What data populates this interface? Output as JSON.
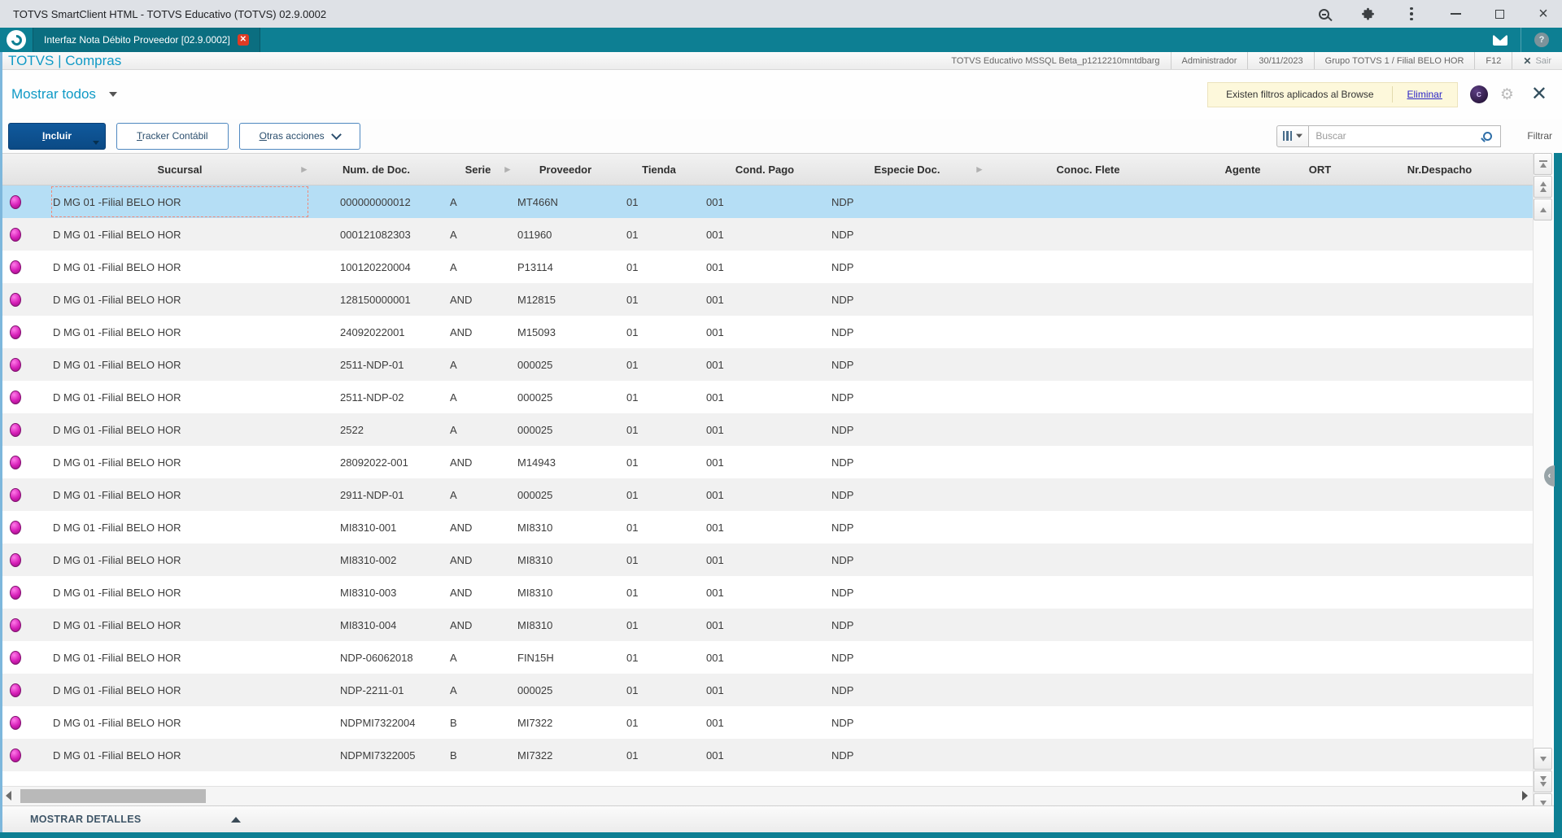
{
  "window": {
    "title": "TOTVS SmartClient HTML - TOTVS Educativo (TOTVS) 02.9.0002"
  },
  "tab_bar": {
    "tab_label": "Interfaz Nota Débito Proveedor [02.9.0002]"
  },
  "header": {
    "app_title": "TOTVS | Compras",
    "environment": "TOTVS Educativo MSSQL Beta_p1212210mntdbarg",
    "user": "Administrador",
    "date": "30/11/2023",
    "branch": "Grupo TOTVS 1 / Filial BELO HOR",
    "shortcut": "F12",
    "exit_x": "✕",
    "exit_label": "Sair"
  },
  "browse": {
    "view_selector": "Mostrar todos",
    "filter_notice": "Existen filtros aplicados al Browse",
    "filter_remove_label": "Eliminar",
    "search_placeholder": "Buscar",
    "filter_label": "Filtrar",
    "assistant_glyph": "c",
    "gear_glyph": "⚙",
    "close_glyph": "✕"
  },
  "toolbar": {
    "include_label": "Incluir",
    "include_underline": "I",
    "include_rest": "ncluir",
    "tracker_underline": "T",
    "tracker_rest": "racker Contábil",
    "more_underline": "O",
    "more_rest": "tras acciones"
  },
  "table": {
    "columns": [
      {
        "label": "Sucursal",
        "arrow": true
      },
      {
        "label": "Num. de Doc.",
        "arrow": false
      },
      {
        "label": "Serie",
        "arrow": true
      },
      {
        "label": "Proveedor",
        "arrow": false
      },
      {
        "label": "Tienda",
        "arrow": false
      },
      {
        "label": "Cond. Pago",
        "arrow": false
      },
      {
        "label": "Especie Doc.",
        "arrow": true
      },
      {
        "label": "Conoc. Flete",
        "arrow": false
      },
      {
        "label": "Agente",
        "arrow": false
      },
      {
        "label": "ORT",
        "arrow": false
      },
      {
        "label": "Nr.Despacho",
        "arrow": false
      }
    ],
    "selected_row_index": 0,
    "status_dot_color": "#d61fb8",
    "rows": [
      [
        "D MG 01 -Filial BELO HOR",
        "000000000012",
        "A",
        "MT466N",
        "01",
        "001",
        "NDP",
        "",
        "",
        "",
        ""
      ],
      [
        "D MG 01 -Filial BELO HOR",
        "000121082303",
        "A",
        "011960",
        "01",
        "001",
        "NDP",
        "",
        "",
        "",
        ""
      ],
      [
        "D MG 01 -Filial BELO HOR",
        "100120220004",
        "A",
        "P13114",
        "01",
        "001",
        "NDP",
        "",
        "",
        "",
        ""
      ],
      [
        "D MG 01 -Filial BELO HOR",
        "128150000001",
        "AND",
        "M12815",
        "01",
        "001",
        "NDP",
        "",
        "",
        "",
        ""
      ],
      [
        "D MG 01 -Filial BELO HOR",
        "24092022001",
        "AND",
        "M15093",
        "01",
        "001",
        "NDP",
        "",
        "",
        "",
        ""
      ],
      [
        "D MG 01 -Filial BELO HOR",
        "2511-NDP-01",
        "A",
        "000025",
        "01",
        "001",
        "NDP",
        "",
        "",
        "",
        ""
      ],
      [
        "D MG 01 -Filial BELO HOR",
        "2511-NDP-02",
        "A",
        "000025",
        "01",
        "001",
        "NDP",
        "",
        "",
        "",
        ""
      ],
      [
        "D MG 01 -Filial BELO HOR",
        "2522",
        "A",
        "000025",
        "01",
        "001",
        "NDP",
        "",
        "",
        "",
        ""
      ],
      [
        "D MG 01 -Filial BELO HOR",
        "28092022-001",
        "AND",
        "M14943",
        "01",
        "001",
        "NDP",
        "",
        "",
        "",
        ""
      ],
      [
        "D MG 01 -Filial BELO HOR",
        "2911-NDP-01",
        "A",
        "000025",
        "01",
        "001",
        "NDP",
        "",
        "",
        "",
        ""
      ],
      [
        "D MG 01 -Filial BELO HOR",
        "MI8310-001",
        "AND",
        "MI8310",
        "01",
        "001",
        "NDP",
        "",
        "",
        "",
        ""
      ],
      [
        "D MG 01 -Filial BELO HOR",
        "MI8310-002",
        "AND",
        "MI8310",
        "01",
        "001",
        "NDP",
        "",
        "",
        "",
        ""
      ],
      [
        "D MG 01 -Filial BELO HOR",
        "MI8310-003",
        "AND",
        "MI8310",
        "01",
        "001",
        "NDP",
        "",
        "",
        "",
        ""
      ],
      [
        "D MG 01 -Filial BELO HOR",
        "MI8310-004",
        "AND",
        "MI8310",
        "01",
        "001",
        "NDP",
        "",
        "",
        "",
        ""
      ],
      [
        "D MG 01 -Filial BELO HOR",
        "NDP-06062018",
        "A",
        "FIN15H",
        "01",
        "001",
        "NDP",
        "",
        "",
        "",
        ""
      ],
      [
        "D MG 01 -Filial BELO HOR",
        "NDP-2211-01",
        "A",
        "000025",
        "01",
        "001",
        "NDP",
        "",
        "",
        "",
        ""
      ],
      [
        "D MG 01 -Filial BELO HOR",
        "NDPMI7322004",
        "B",
        "MI7322",
        "01",
        "001",
        "NDP",
        "",
        "",
        "",
        ""
      ],
      [
        "D MG 01 -Filial BELO HOR",
        "NDPMI7322005",
        "B",
        "MI7322",
        "01",
        "001",
        "NDP",
        "",
        "",
        "",
        ""
      ]
    ]
  },
  "footer": {
    "details_label": "MOSTRAR DETALLES"
  },
  "colors": {
    "teal": "#0d7f93",
    "tab_teal": "#0b6e80",
    "title_blue": "#0f9ac6",
    "primary_button": "#0b4a85",
    "selected_row": "#b5def5",
    "alt_row": "#f1f1f1",
    "notice_bg": "#fdf8db",
    "link_blue": "#2a23c7",
    "status_dot": "#d61fb8"
  },
  "icons": {
    "zoom-icon": "magnifier-minus",
    "extensions-icon": "puzzle-piece",
    "menu-kebab-icon": "three-dots",
    "minimize-icon": "underscore",
    "restore-icon": "double-square",
    "close-icon": "x",
    "totvs-logo": "white-circle-swirl",
    "mail-icon": "envelope",
    "help-icon": "question-circle",
    "search-icon": "magnifier",
    "gear-icon": "gear",
    "columns-icon": "three-bars"
  }
}
